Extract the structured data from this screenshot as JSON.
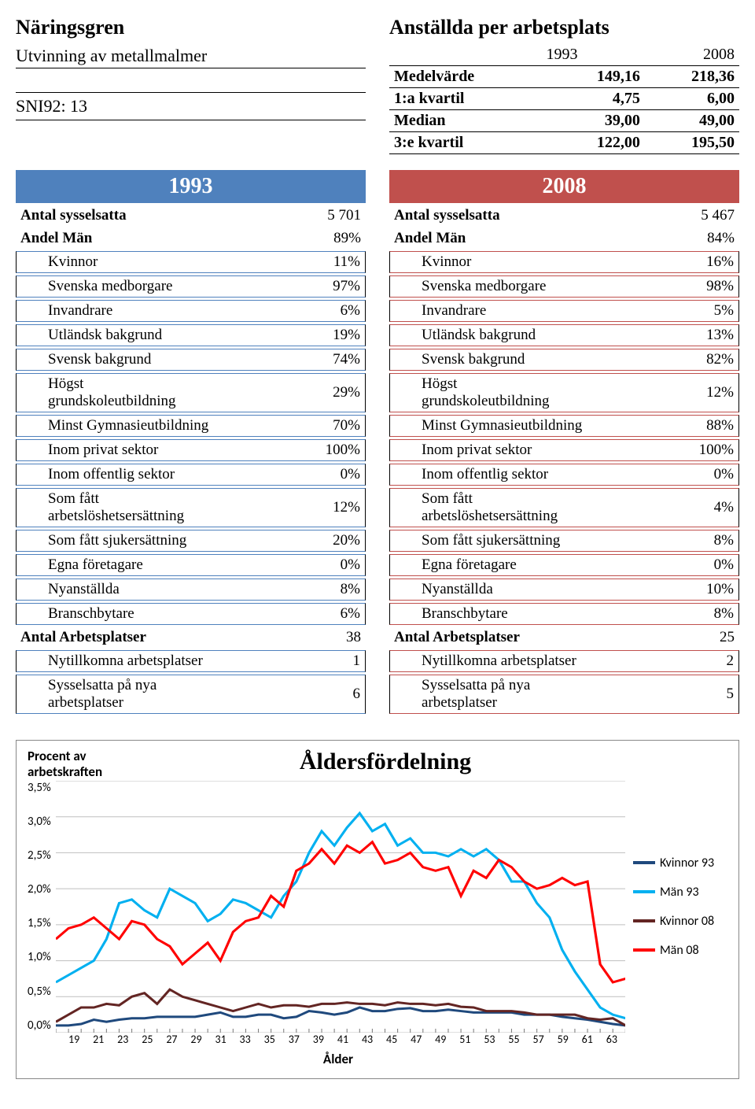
{
  "header": {
    "left_label": "Näringsgren",
    "subtitle": "Utvinning av metallmalmer",
    "sni": "SNI92: 13",
    "right_label": "Anställda per arbetsplats"
  },
  "summary_table": {
    "years": [
      "1993",
      "2008"
    ],
    "rows": [
      {
        "label": "Medelvärde",
        "v1": "149,16",
        "v2": "218,36"
      },
      {
        "label": "1:a kvartil",
        "v1": "4,75",
        "v2": "6,00"
      },
      {
        "label": "Median",
        "v1": "39,00",
        "v2": "49,00"
      },
      {
        "label": "3:e kvartil",
        "v1": "122,00",
        "v2": "195,50"
      }
    ]
  },
  "year_1993": {
    "banner": "1993",
    "border_color": "#4f81bd",
    "rows": [
      {
        "type": "plain_bold",
        "label": "Antal sysselsatta",
        "value": "5 701"
      },
      {
        "type": "plain_bold",
        "label": "Andel Män",
        "value": "89%"
      },
      {
        "type": "boxed_indent",
        "label": "Kvinnor",
        "value": "11%"
      },
      {
        "type": "boxed_indent",
        "label": "Svenska medborgare",
        "value": "97%"
      },
      {
        "type": "boxed_indent",
        "label": "Invandrare",
        "value": "6%"
      },
      {
        "type": "boxed_indent",
        "label": "Utländsk bakgrund",
        "value": "19%"
      },
      {
        "type": "boxed_indent",
        "label": "Svensk bakgrund",
        "value": "74%"
      },
      {
        "type": "boxed_indent",
        "label": "Högst\ngrundskoleutbildning",
        "value": "29%"
      },
      {
        "type": "boxed_indent",
        "label": "Minst Gymnasieutbildning",
        "value": "70%"
      },
      {
        "type": "boxed_indent",
        "label": "Inom privat sektor",
        "value": "100%"
      },
      {
        "type": "boxed_indent",
        "label": "Inom offentlig sektor",
        "value": "0%"
      },
      {
        "type": "boxed_indent",
        "label": "Som fått\narbetslöshetsersättning",
        "value": "12%"
      },
      {
        "type": "boxed_indent",
        "label": "Som fått sjukersättning",
        "value": "20%"
      },
      {
        "type": "boxed_indent",
        "label": "Egna företagare",
        "value": "0%"
      },
      {
        "type": "boxed_indent",
        "label": "Nyanställda",
        "value": "8%"
      },
      {
        "type": "boxed_indent",
        "label": "Branschbytare",
        "value": "6%"
      },
      {
        "type": "plain_bold",
        "label": "Antal Arbetsplatser",
        "value": "38"
      },
      {
        "type": "boxed_indent",
        "label": "Nytillkomna arbetsplatser",
        "value": "1"
      },
      {
        "type": "boxed_indent",
        "label": "Sysselsatta på nya\narbetsplatser",
        "value": "6"
      }
    ]
  },
  "year_2008": {
    "banner": "2008",
    "border_color": "#c0504d",
    "rows": [
      {
        "type": "plain_bold",
        "label": "Antal sysselsatta",
        "value": "5 467"
      },
      {
        "type": "plain_bold",
        "label": "Andel Män",
        "value": "84%"
      },
      {
        "type": "boxed_indent",
        "label": "Kvinnor",
        "value": "16%"
      },
      {
        "type": "boxed_indent",
        "label": "Svenska medborgare",
        "value": "98%"
      },
      {
        "type": "boxed_indent",
        "label": "Invandrare",
        "value": "5%"
      },
      {
        "type": "boxed_indent",
        "label": "Utländsk bakgrund",
        "value": "13%"
      },
      {
        "type": "boxed_indent",
        "label": "Svensk bakgrund",
        "value": "82%"
      },
      {
        "type": "boxed_indent",
        "label": "Högst\ngrundskoleutbildning",
        "value": "12%"
      },
      {
        "type": "boxed_indent",
        "label": "Minst Gymnasieutbildning",
        "value": "88%"
      },
      {
        "type": "boxed_indent",
        "label": "Inom privat sektor",
        "value": "100%"
      },
      {
        "type": "boxed_indent",
        "label": "Inom offentlig sektor",
        "value": "0%"
      },
      {
        "type": "boxed_indent",
        "label": "Som fått\narbetslöshetsersättning",
        "value": "4%"
      },
      {
        "type": "boxed_indent",
        "label": "Som fått sjukersättning",
        "value": "8%"
      },
      {
        "type": "boxed_indent",
        "label": "Egna företagare",
        "value": "0%"
      },
      {
        "type": "boxed_indent",
        "label": "Nyanställda",
        "value": "10%"
      },
      {
        "type": "boxed_indent",
        "label": "Branschbytare",
        "value": "8%"
      },
      {
        "type": "plain_bold",
        "label": "Antal Arbetsplatser",
        "value": "25"
      },
      {
        "type": "boxed_indent",
        "label": "Nytillkomna arbetsplatser",
        "value": "2"
      },
      {
        "type": "boxed_indent",
        "label": "Sysselsatta på nya\narbetsplatser",
        "value": "5"
      }
    ]
  },
  "chart": {
    "title": "Åldersfördelning",
    "ylabel": "Procent av arbetskraften",
    "xlabel": "Ålder",
    "ylim": [
      0,
      3.5
    ],
    "ytick_step": 0.5,
    "yticks": [
      "3,5%",
      "3,0%",
      "2,5%",
      "2,0%",
      "1,5%",
      "1,0%",
      "0,5%",
      "0,0%"
    ],
    "x_start": 19,
    "x_end": 64,
    "xticks": [
      19,
      21,
      23,
      25,
      27,
      29,
      31,
      33,
      35,
      37,
      39,
      41,
      43,
      45,
      47,
      49,
      51,
      53,
      55,
      57,
      59,
      61,
      63
    ],
    "grid_color": "#bfbfbf",
    "background": "#ffffff",
    "line_width": 3,
    "series": [
      {
        "name": "Kvinnor 93",
        "color": "#1f497d",
        "values": [
          0.1,
          0.1,
          0.12,
          0.18,
          0.15,
          0.18,
          0.2,
          0.2,
          0.22,
          0.22,
          0.22,
          0.22,
          0.25,
          0.28,
          0.22,
          0.22,
          0.25,
          0.25,
          0.2,
          0.22,
          0.3,
          0.28,
          0.25,
          0.28,
          0.35,
          0.3,
          0.3,
          0.33,
          0.34,
          0.3,
          0.3,
          0.32,
          0.3,
          0.28,
          0.28,
          0.28,
          0.28,
          0.25,
          0.25,
          0.25,
          0.22,
          0.2,
          0.18,
          0.15,
          0.12,
          0.1
        ]
      },
      {
        "name": "Män 93",
        "color": "#00b0f0",
        "values": [
          0.7,
          0.8,
          0.9,
          1.0,
          1.3,
          1.8,
          1.85,
          1.7,
          1.6,
          2.0,
          1.9,
          1.8,
          1.55,
          1.65,
          1.85,
          1.8,
          1.7,
          1.6,
          1.9,
          2.1,
          2.5,
          2.8,
          2.6,
          2.85,
          3.05,
          2.8,
          2.9,
          2.6,
          2.7,
          2.5,
          2.5,
          2.45,
          2.55,
          2.45,
          2.55,
          2.4,
          2.1,
          2.1,
          1.8,
          1.6,
          1.15,
          0.85,
          0.6,
          0.35,
          0.25,
          0.2
        ]
      },
      {
        "name": "Kvinnor 08",
        "color": "#632523",
        "values": [
          0.15,
          0.25,
          0.35,
          0.35,
          0.4,
          0.38,
          0.5,
          0.55,
          0.4,
          0.6,
          0.5,
          0.45,
          0.4,
          0.35,
          0.3,
          0.35,
          0.4,
          0.35,
          0.38,
          0.38,
          0.36,
          0.4,
          0.4,
          0.42,
          0.4,
          0.4,
          0.38,
          0.42,
          0.4,
          0.4,
          0.38,
          0.4,
          0.36,
          0.35,
          0.3,
          0.3,
          0.3,
          0.28,
          0.25,
          0.25,
          0.25,
          0.25,
          0.2,
          0.18,
          0.2,
          0.1
        ]
      },
      {
        "name": "Män 08",
        "color": "#ff0000",
        "values": [
          1.3,
          1.45,
          1.5,
          1.6,
          1.45,
          1.3,
          1.55,
          1.5,
          1.3,
          1.2,
          0.95,
          1.1,
          1.25,
          1.0,
          1.4,
          1.55,
          1.6,
          1.9,
          1.75,
          2.25,
          2.35,
          2.55,
          2.35,
          2.6,
          2.5,
          2.65,
          2.35,
          2.4,
          2.5,
          2.3,
          2.25,
          2.3,
          1.9,
          2.25,
          2.15,
          2.4,
          2.3,
          2.1,
          2.0,
          2.05,
          2.15,
          2.05,
          2.1,
          0.95,
          0.7,
          0.75
        ]
      }
    ]
  }
}
